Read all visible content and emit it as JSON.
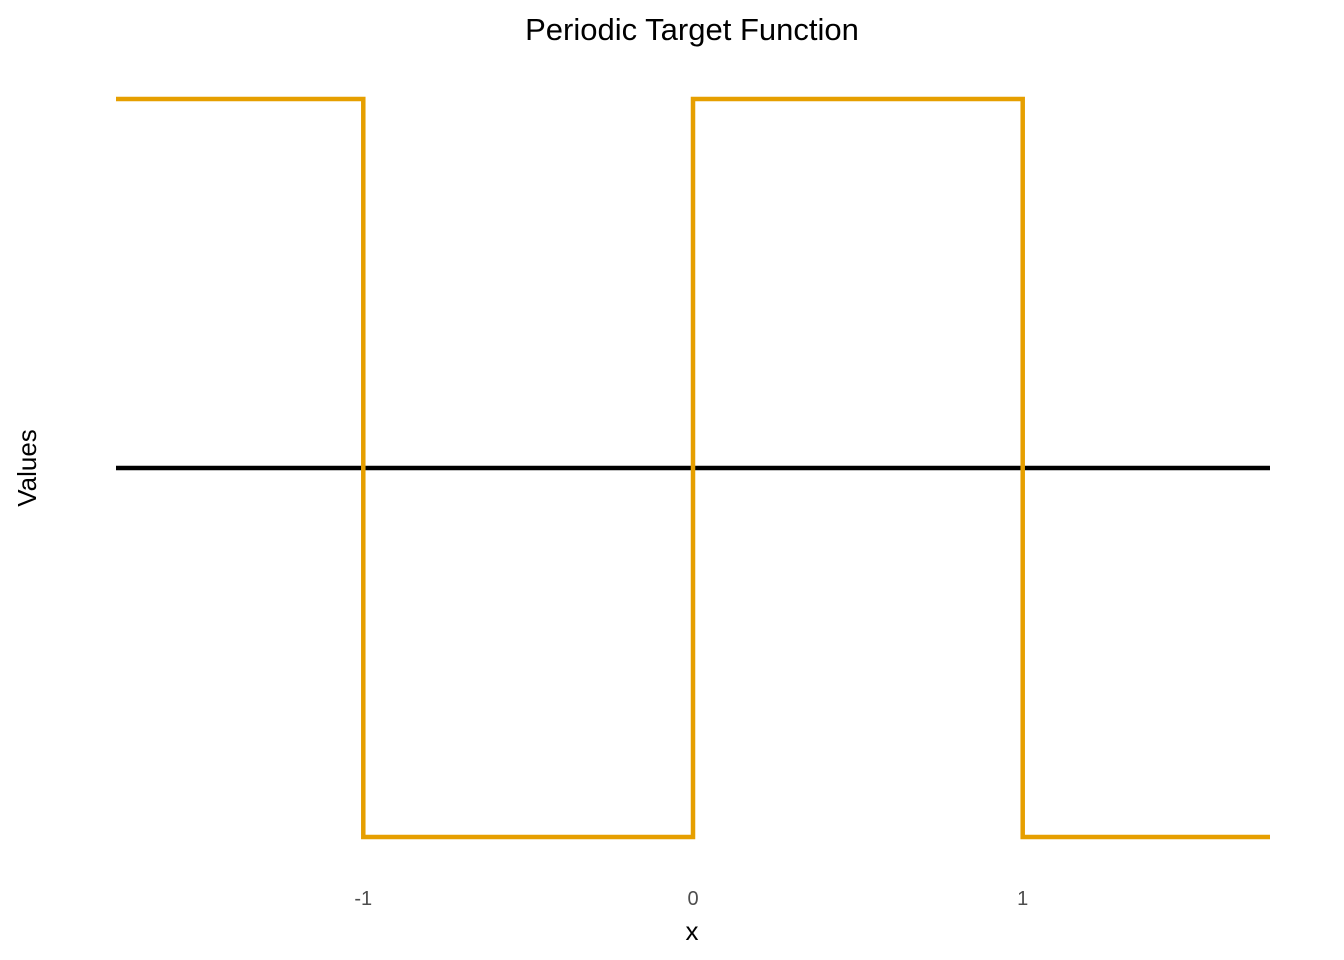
{
  "chart_data": {
    "type": "line",
    "title": "Periodic Target Function",
    "xlabel": "x",
    "ylabel": "Values",
    "xlim": [
      -1.75,
      1.75
    ],
    "ylim": [
      -1,
      1
    ],
    "x_ticks": [
      -1,
      0,
      1
    ],
    "x_tick_labels": [
      "-1",
      "0",
      "1"
    ],
    "grid": false,
    "legend": "none",
    "series": [
      {
        "color": "#E69F00",
        "step": true,
        "points": [
          [
            -1.75,
            1
          ],
          [
            -1,
            1
          ],
          [
            -1,
            -1
          ],
          [
            0,
            -1
          ],
          [
            0,
            1
          ],
          [
            1,
            1
          ],
          [
            1,
            -1
          ],
          [
            1.75,
            -1
          ]
        ]
      },
      {
        "color": "#000000",
        "points": [
          [
            -1.75,
            0
          ],
          [
            1.75,
            0
          ]
        ]
      }
    ]
  }
}
